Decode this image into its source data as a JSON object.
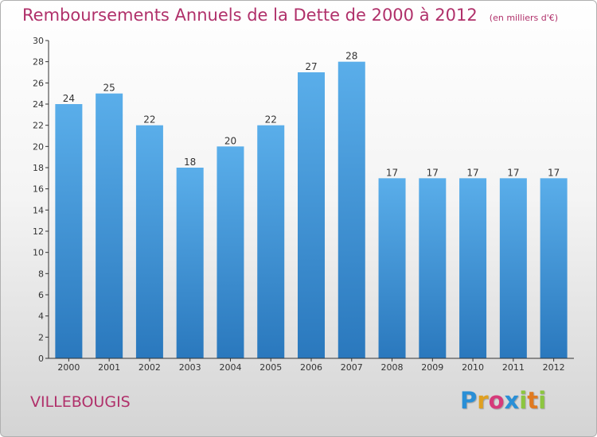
{
  "chart_data": {
    "type": "bar",
    "title": "Remboursements Annuels de la Dette de 2000 à 2012",
    "subtitle": "(en milliers d'€)",
    "categories": [
      "2000",
      "2001",
      "2002",
      "2003",
      "2004",
      "2005",
      "2006",
      "2007",
      "2008",
      "2009",
      "2010",
      "2011",
      "2012"
    ],
    "values": [
      24,
      25,
      22,
      18,
      20,
      22,
      27,
      28,
      17,
      17,
      17,
      17,
      17
    ],
    "ylim": [
      0,
      30
    ],
    "yticks": [
      0,
      2,
      4,
      6,
      8,
      10,
      12,
      14,
      16,
      18,
      20,
      22,
      24,
      26,
      28,
      30
    ],
    "grid": false,
    "bar_color": "#4a9fe0"
  },
  "footer": {
    "commune": "VILLEBOUGIS",
    "logo_letters": [
      {
        "ch": "P",
        "color": "#2a8fd6"
      },
      {
        "ch": "r",
        "color": "#e0a020"
      },
      {
        "ch": "o",
        "color": "#d63a7a"
      },
      {
        "ch": "x",
        "color": "#2a8fd6"
      },
      {
        "ch": "i",
        "color": "#8cc63f"
      },
      {
        "ch": "t",
        "color": "#e07a20"
      },
      {
        "ch": "i",
        "color": "#8cc63f"
      }
    ]
  },
  "colors": {
    "title": "#b0306a",
    "axis": "#333333"
  }
}
